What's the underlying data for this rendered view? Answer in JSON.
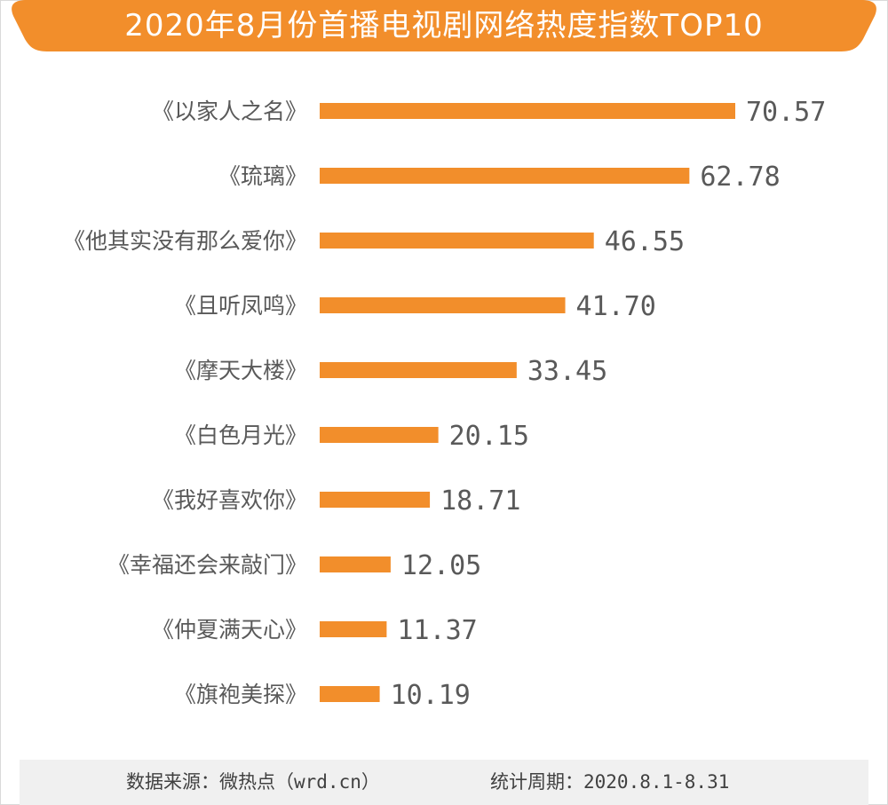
{
  "title": "2020年8月份首播电视剧网络热度指数TOP10",
  "colors": {
    "accent": "#f28e2b",
    "text": "#595959",
    "footer_bg": "#f0f0f0"
  },
  "chart_data": {
    "type": "bar",
    "orientation": "horizontal",
    "categories": [
      "《以家人之名》",
      "《琉璃》",
      "《他其实没有那么爱你》",
      "《且听凤鸣》",
      "《摩天大楼》",
      "《白色月光》",
      "《我好喜欢你》",
      "《幸福还会来敲门》",
      "《仲夏满天心》",
      "《旗袍美探》"
    ],
    "values": [
      70.57,
      62.78,
      46.55,
      41.7,
      33.45,
      20.15,
      18.71,
      12.05,
      11.37,
      10.19
    ],
    "value_labels": [
      "70.57",
      "62.78",
      "46.55",
      "41.70",
      "33.45",
      "20.15",
      "18.71",
      "12.05",
      "11.37",
      "10.19"
    ],
    "xlim": [
      0,
      70.57
    ],
    "grid": false,
    "bar_color": "#f28e2b"
  },
  "footer": {
    "source": "数据来源：微热点（wrd.cn）",
    "period": "统计周期：2020.8.1-8.31"
  }
}
